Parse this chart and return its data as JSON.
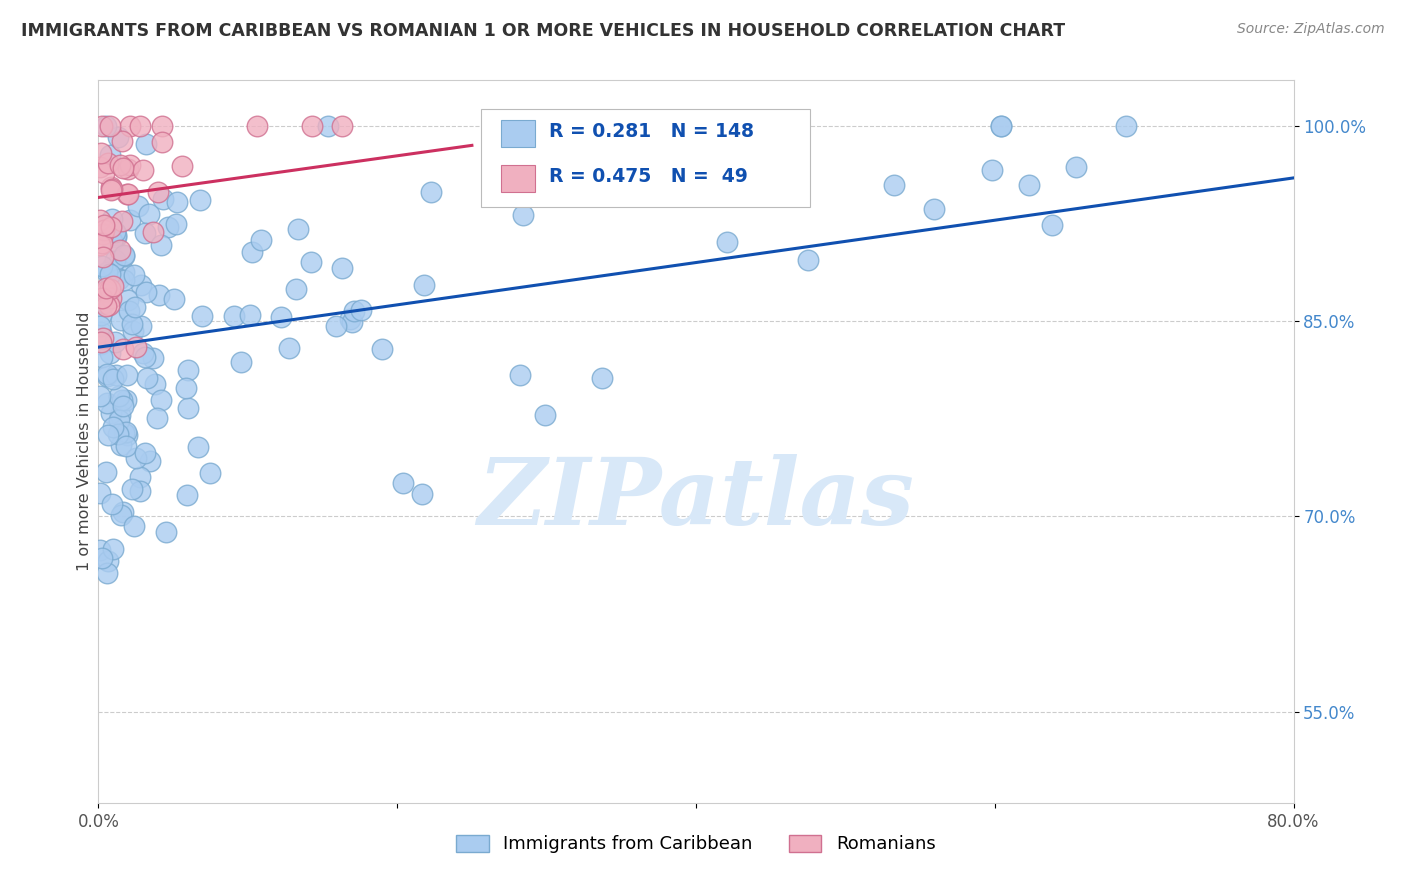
{
  "title": "IMMIGRANTS FROM CARIBBEAN VS ROMANIAN 1 OR MORE VEHICLES IN HOUSEHOLD CORRELATION CHART",
  "source": "Source: ZipAtlas.com",
  "ylabel": "1 or more Vehicles in Household",
  "xlim": [
    0.0,
    0.8
  ],
  "ylim": [
    0.48,
    1.035
  ],
  "xtick_positions": [
    0.0,
    0.2,
    0.4,
    0.6,
    0.8
  ],
  "xtick_labels": [
    "0.0%",
    "",
    "",
    "",
    "80.0%"
  ],
  "ytick_positions": [
    0.55,
    0.7,
    0.85,
    1.0
  ],
  "ytick_labels": [
    "55.0%",
    "70.0%",
    "85.0%",
    "100.0%"
  ],
  "blue_color": "#aaccf0",
  "blue_edge": "#7aaad0",
  "pink_color": "#f0b0c0",
  "pink_edge": "#d07090",
  "trend_blue": "#1050b0",
  "trend_pink": "#cc3060",
  "watermark_color": "#d8e8f8",
  "grid_color": "#cccccc",
  "background": "#ffffff",
  "R_blue": 0.281,
  "N_blue": 148,
  "R_pink": 0.475,
  "N_pink": 49,
  "legend_text_color": "#1050b0",
  "ytick_color": "#4488cc",
  "title_color": "#333333",
  "source_color": "#888888"
}
